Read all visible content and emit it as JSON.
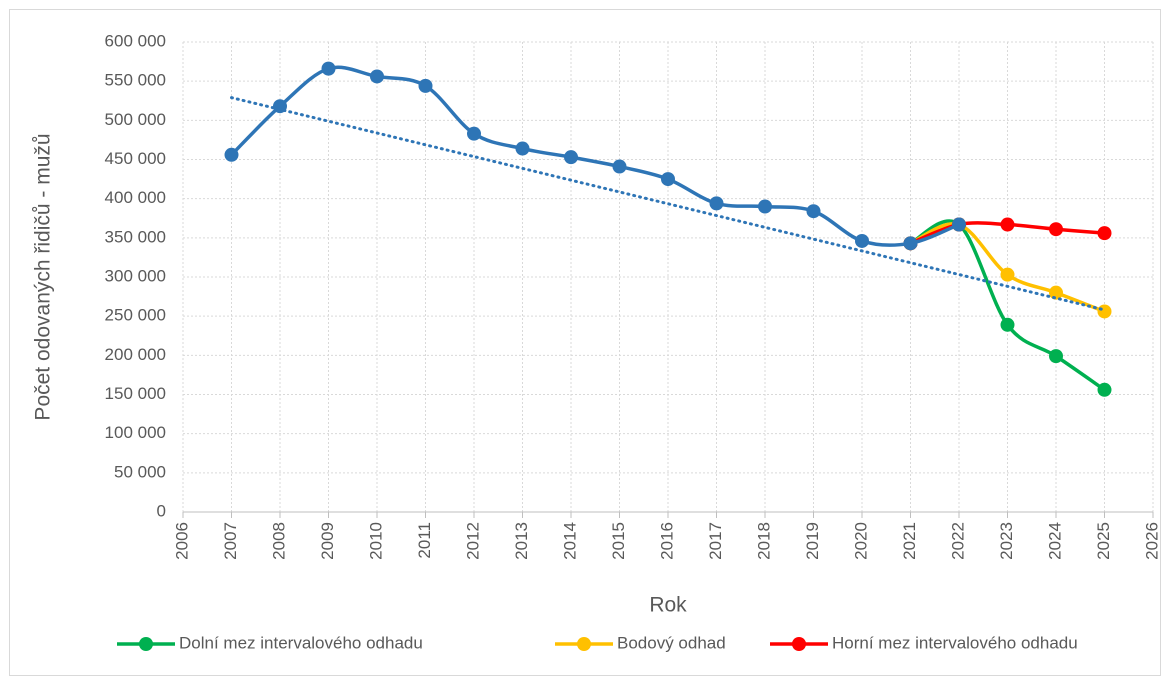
{
  "chart_data": {
    "type": "line",
    "x_label": "Rok",
    "y_label": "Počet odovaných řidičů - mužů",
    "x": [
      2007,
      2008,
      2009,
      2010,
      2011,
      2012,
      2013,
      2014,
      2015,
      2016,
      2017,
      2018,
      2019,
      2020,
      2021,
      2022,
      2023,
      2024,
      2025
    ],
    "series": [
      {
        "name": "Dolní mez intervalového odhadu",
        "color": "#00b050",
        "values": [
          null,
          null,
          null,
          null,
          null,
          null,
          null,
          null,
          null,
          null,
          null,
          null,
          null,
          null,
          343000,
          367000,
          239000,
          199000,
          156000
        ]
      },
      {
        "name": "Bodový odhad",
        "color": "#ffc000",
        "values": [
          null,
          null,
          null,
          null,
          null,
          null,
          null,
          null,
          null,
          null,
          null,
          null,
          null,
          null,
          343000,
          367000,
          303000,
          280000,
          256000
        ]
      },
      {
        "name": "Horní mez intervalového odhadu",
        "color": "#ff0000",
        "values": [
          null,
          null,
          null,
          null,
          null,
          null,
          null,
          null,
          null,
          null,
          null,
          null,
          null,
          null,
          343000,
          367000,
          367000,
          361000,
          356000
        ]
      },
      {
        "color": "#2e75b6",
        "dash": "dotted",
        "marker": false,
        "x": [
          2007,
          2025
        ],
        "values": [
          529000,
          258000
        ]
      },
      {
        "color": "#2e75b6",
        "values": [
          456000,
          518000,
          566000,
          556000,
          544000,
          483000,
          464000,
          453000,
          441000,
          425000,
          394000,
          390000,
          384000,
          346000,
          343000,
          367000,
          null,
          null,
          null
        ]
      }
    ],
    "legend_series": [
      0,
      1,
      2
    ],
    "xlim": [
      2006,
      2026
    ],
    "xticks": [
      2006,
      2007,
      2008,
      2009,
      2010,
      2011,
      2012,
      2013,
      2014,
      2015,
      2016,
      2017,
      2018,
      2019,
      2020,
      2021,
      2022,
      2023,
      2024,
      2025,
      2026
    ],
    "ylim": [
      0,
      600000
    ],
    "yticks": [
      0,
      {
        "value": 50000,
        "label": "50 000"
      },
      {
        "value": 100000,
        "label": "100 000"
      },
      {
        "value": 150000,
        "label": "150 000"
      },
      {
        "value": 200000,
        "label": "200 000"
      },
      {
        "value": 250000,
        "label": "250 000"
      },
      {
        "value": 300000,
        "label": "300 000"
      },
      {
        "value": 350000,
        "label": "350 000"
      },
      {
        "value": 400000,
        "label": "400 000"
      },
      {
        "value": 450000,
        "label": "450 000"
      },
      {
        "value": 500000,
        "label": "500 000"
      },
      {
        "value": 550000,
        "label": "550 000"
      },
      {
        "value": 600000,
        "label": "600 000"
      }
    ],
    "grid": true,
    "legend": "bottom"
  }
}
